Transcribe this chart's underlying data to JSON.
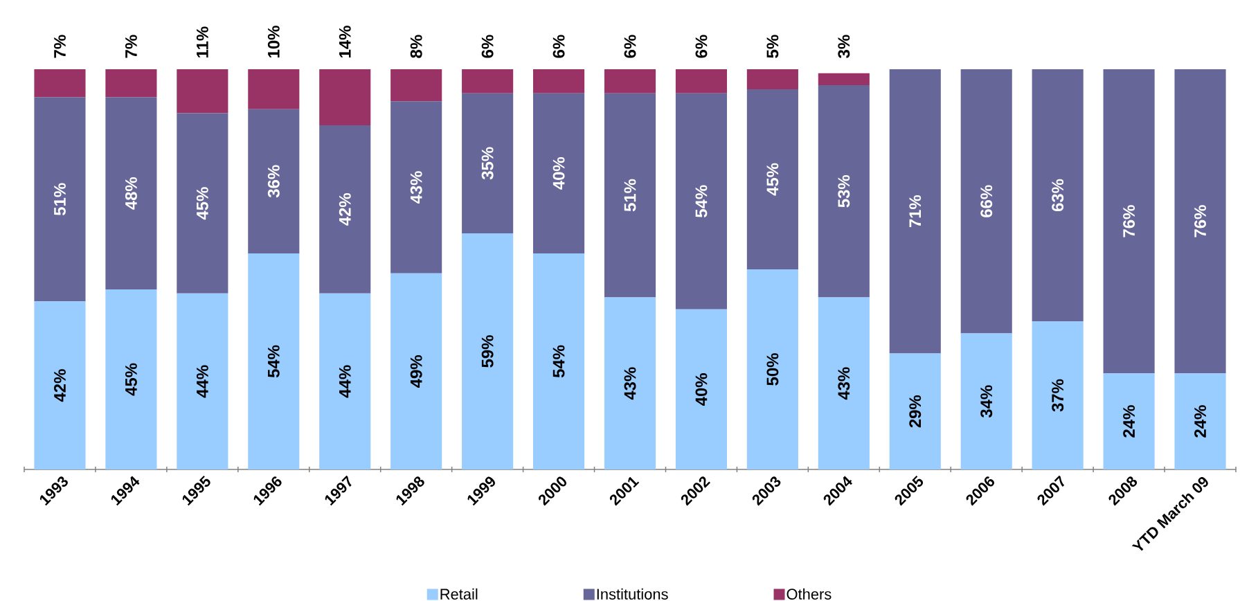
{
  "chart_data": {
    "type": "bar",
    "stacked": true,
    "legend": "bottom",
    "categories": [
      "1993",
      "1994",
      "1995",
      "1996",
      "1997",
      "1998",
      "1999",
      "2000",
      "2001",
      "2002",
      "2003",
      "2004",
      "2005",
      "2006",
      "2007",
      "2008",
      "YTD March 09"
    ],
    "series": [
      {
        "name": "Retail",
        "color": "#99ccff",
        "values": [
          42,
          45,
          44,
          54,
          44,
          49,
          59,
          54,
          43,
          40,
          50,
          43,
          29,
          34,
          37,
          24,
          24
        ],
        "value_labels": [
          "42%",
          "45%",
          "44%",
          "54%",
          "44%",
          "49%",
          "59%",
          "54%",
          "43%",
          "40%",
          "50%",
          "43%",
          "29%",
          "34%",
          "37%",
          "24%",
          "24%"
        ]
      },
      {
        "name": "Institutions",
        "color": "#666699",
        "values": [
          51,
          48,
          45,
          36,
          42,
          43,
          35,
          40,
          51,
          54,
          45,
          53,
          71,
          66,
          63,
          76,
          76
        ],
        "value_labels": [
          "51%",
          "48%",
          "45%",
          "36%",
          "42%",
          "43%",
          "35%",
          "40%",
          "51%",
          "54%",
          "45%",
          "53%",
          "71%",
          "66%",
          "63%",
          "76%",
          "76%"
        ]
      },
      {
        "name": "Others",
        "color": "#993366",
        "values": [
          7,
          7,
          11,
          10,
          14,
          8,
          6,
          6,
          6,
          6,
          5,
          3,
          0,
          0,
          0,
          0,
          0
        ],
        "value_labels": [
          "7%",
          "7%",
          "11%",
          "10%",
          "14%",
          "8%",
          "6%",
          "6%",
          "6%",
          "6%",
          "5%",
          "3%",
          null,
          null,
          null,
          null,
          null
        ]
      }
    ]
  }
}
